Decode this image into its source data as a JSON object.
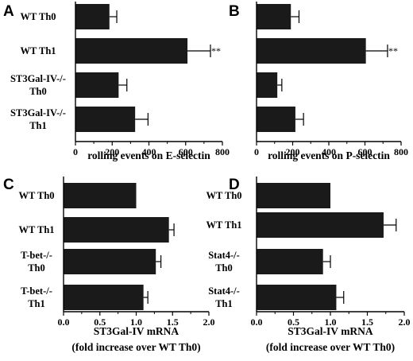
{
  "chart_data": [
    {
      "panel": "A",
      "type": "bar",
      "orientation": "horizontal",
      "categories": [
        [
          "WT Th0"
        ],
        [
          "WT Th1"
        ],
        [
          "ST3Gal-IV-/-",
          "Th0"
        ],
        [
          "ST3Gal-IV-/-",
          "Th1"
        ]
      ],
      "values": [
        185,
        610,
        235,
        325
      ],
      "errors": [
        40,
        125,
        45,
        70
      ],
      "significance": [
        "",
        "**",
        "",
        ""
      ],
      "xlabel": [
        "rolling events on E-selectin"
      ],
      "xlim": [
        0,
        800
      ],
      "xticks": [
        0,
        200,
        400,
        600,
        800
      ],
      "tick_labels": [
        "0",
        "200",
        "400",
        "600",
        "800"
      ],
      "bar_color": "#1a1a1a"
    },
    {
      "panel": "B",
      "type": "bar",
      "orientation": "horizontal",
      "categories": [
        [
          ""
        ],
        [
          ""
        ],
        [
          ""
        ],
        [
          ""
        ]
      ],
      "values": [
        190,
        605,
        115,
        215
      ],
      "errors": [
        45,
        120,
        25,
        45
      ],
      "significance": [
        "",
        "**",
        "",
        ""
      ],
      "xlabel": [
        "rolling events on P-selectin"
      ],
      "xlim": [
        0,
        800
      ],
      "xticks": [
        0,
        200,
        400,
        600,
        800
      ],
      "tick_labels": [
        "0",
        "200",
        "400",
        "600",
        "800"
      ],
      "bar_color": "#1a1a1a"
    },
    {
      "panel": "C",
      "type": "bar",
      "orientation": "horizontal",
      "categories": [
        [
          "WT Th0"
        ],
        [
          "WT Th1"
        ],
        [
          "T-bet-/-",
          "Th0"
        ],
        [
          "T-bet-/-",
          "Th1"
        ]
      ],
      "values": [
        1.0,
        1.45,
        1.27,
        1.1
      ],
      "errors": [
        0,
        0.07,
        0.07,
        0.06
      ],
      "significance": [
        "",
        "",
        "",
        ""
      ],
      "xlabel": [
        "ST3Gal-IV mRNA",
        "(fold increase over WT Th0)"
      ],
      "xlim": [
        0,
        2.0
      ],
      "xticks": [
        0,
        0.5,
        1.0,
        1.5,
        2.0
      ],
      "tick_labels": [
        "0.0",
        "0.5",
        "1.0",
        "1.5",
        "2.0"
      ],
      "bar_color": "#1a1a1a"
    },
    {
      "panel": "D",
      "type": "bar",
      "orientation": "horizontal",
      "categories": [
        [
          "WT Th0"
        ],
        [
          "WT Th1"
        ],
        [
          "Stat4-/-",
          "Th0"
        ],
        [
          "Stat4-/-",
          "Th1"
        ]
      ],
      "values": [
        1.0,
        1.72,
        0.9,
        1.08
      ],
      "errors": [
        0,
        0.17,
        0.1,
        0.1
      ],
      "significance": [
        "",
        "",
        "",
        ""
      ],
      "xlabel": [
        "ST3Gal-IV mRNA",
        "(fold increase over WT Th0)"
      ],
      "xlim": [
        0,
        2.0
      ],
      "xticks": [
        0,
        0.5,
        1.0,
        1.5,
        2.0
      ],
      "tick_labels": [
        "0.0",
        "0.5",
        "1.0",
        "1.5",
        "2.0"
      ],
      "bar_color": "#1a1a1a"
    }
  ]
}
